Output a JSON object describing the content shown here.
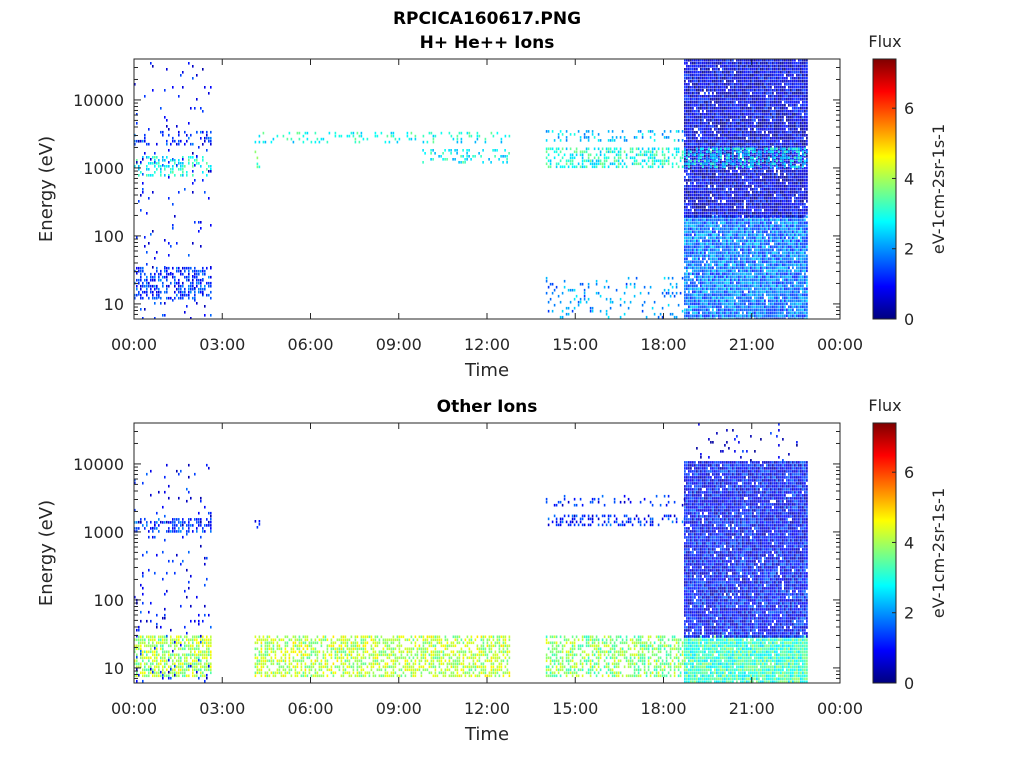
{
  "figure": {
    "title": "RPCICA160617.PNG"
  },
  "colormap": {
    "name": "jet",
    "stops": [
      "#00007f",
      "#0000ff",
      "#007fff",
      "#00ffff",
      "#7fff7f",
      "#ffff00",
      "#ff7f00",
      "#ff0000",
      "#7f0000"
    ]
  },
  "chart_data": [
    {
      "type": "heatmap",
      "title": "H+ He++ Ions",
      "xlabel": "Time",
      "ylabel": "Energy (eV)",
      "x_ticks": [
        "00:00",
        "03:00",
        "06:00",
        "09:00",
        "12:00",
        "15:00",
        "18:00",
        "21:00",
        "00:00"
      ],
      "x_range_hours": [
        0,
        24
      ],
      "y_scale": "log",
      "y_ticks": [
        "10",
        "100",
        "1000",
        "10000"
      ],
      "y_range": [
        6,
        40000
      ],
      "colorbar": {
        "title": "Flux",
        "label": "eV-1cm-2sr-1s-1",
        "range": [
          0,
          7.4
        ],
        "ticks": [
          "0",
          "2",
          "4",
          "6"
        ]
      },
      "bands": [
        {
          "t": [
            0.0,
            2.6
          ],
          "e": [
            12,
            35
          ],
          "flux": 1.3,
          "density": 0.5
        },
        {
          "t": [
            0.0,
            2.6
          ],
          "e": [
            800,
            1500
          ],
          "flux": 2.9,
          "density": 0.35
        },
        {
          "t": [
            0.0,
            2.6
          ],
          "e": [
            2200,
            3500
          ],
          "flux": 1.3,
          "density": 0.2
        },
        {
          "t": [
            0.0,
            2.6
          ],
          "e": [
            6,
            40000
          ],
          "flux": 1.0,
          "density": 0.04
        },
        {
          "t": [
            4.1,
            12.8
          ],
          "e": [
            2300,
            3400
          ],
          "flux": 2.9,
          "density": 0.2
        },
        {
          "t": [
            9.8,
            12.8
          ],
          "e": [
            1200,
            1900
          ],
          "flux": 2.8,
          "density": 0.25
        },
        {
          "t": [
            4.1,
            4.3
          ],
          "e": [
            900,
            1800
          ],
          "flux": 3.2,
          "density": 0.3
        },
        {
          "t": [
            14.0,
            18.7
          ],
          "e": [
            1000,
            2000
          ],
          "flux": 3.0,
          "density": 0.5
        },
        {
          "t": [
            14.0,
            18.7
          ],
          "e": [
            2500,
            3600
          ],
          "flux": 2.4,
          "density": 0.2
        },
        {
          "t": [
            14.0,
            18.7
          ],
          "e": [
            6,
            25
          ],
          "flux": 2.0,
          "density": 0.15
        },
        {
          "t": [
            18.7,
            22.9
          ],
          "e": [
            6,
            200
          ],
          "flux": 1.8,
          "density": 0.95
        },
        {
          "t": [
            18.7,
            22.9
          ],
          "e": [
            200,
            40000
          ],
          "flux": 0.7,
          "density": 0.95
        },
        {
          "t": [
            18.7,
            22.9
          ],
          "e": [
            1000,
            2000
          ],
          "flux": 2.6,
          "density": 0.5
        }
      ]
    },
    {
      "type": "heatmap",
      "title": "Other Ions",
      "xlabel": "Time",
      "ylabel": "Energy (eV)",
      "x_ticks": [
        "00:00",
        "03:00",
        "06:00",
        "09:00",
        "12:00",
        "15:00",
        "18:00",
        "21:00",
        "00:00"
      ],
      "x_range_hours": [
        0,
        24
      ],
      "y_scale": "log",
      "y_ticks": [
        "10",
        "100",
        "1000",
        "10000"
      ],
      "y_range": [
        6,
        40000
      ],
      "colorbar": {
        "title": "Flux",
        "label": "eV-1cm-2sr-1s-1",
        "range": [
          0,
          7.4
        ],
        "ticks": [
          "0",
          "2",
          "4",
          "6"
        ]
      },
      "bands": [
        {
          "t": [
            0.0,
            2.6
          ],
          "e": [
            8,
            30
          ],
          "flux": 4.0,
          "density": 0.7
        },
        {
          "t": [
            0.0,
            2.6
          ],
          "e": [
            1000,
            1600
          ],
          "flux": 1.3,
          "density": 0.4
        },
        {
          "t": [
            0.0,
            2.6
          ],
          "e": [
            6,
            10000
          ],
          "flux": 1.0,
          "density": 0.05
        },
        {
          "t": [
            4.1,
            12.8
          ],
          "e": [
            8,
            30
          ],
          "flux": 4.1,
          "density": 0.6
        },
        {
          "t": [
            4.1,
            4.3
          ],
          "e": [
            1000,
            1500
          ],
          "flux": 1.3,
          "density": 0.3
        },
        {
          "t": [
            14.0,
            18.7
          ],
          "e": [
            8,
            30
          ],
          "flux": 3.8,
          "density": 0.55
        },
        {
          "t": [
            14.0,
            18.7
          ],
          "e": [
            1200,
            1800
          ],
          "flux": 1.2,
          "density": 0.4
        },
        {
          "t": [
            14.0,
            18.7
          ],
          "e": [
            2500,
            3500
          ],
          "flux": 1.1,
          "density": 0.2
        },
        {
          "t": [
            18.7,
            22.9
          ],
          "e": [
            6,
            30
          ],
          "flux": 3.2,
          "density": 0.95
        },
        {
          "t": [
            18.7,
            22.9
          ],
          "e": [
            30,
            11000
          ],
          "flux": 1.0,
          "density": 0.95
        },
        {
          "t": [
            18.7,
            22.9
          ],
          "e": [
            11000,
            40000
          ],
          "flux": 0.8,
          "density": 0.05
        }
      ]
    }
  ]
}
